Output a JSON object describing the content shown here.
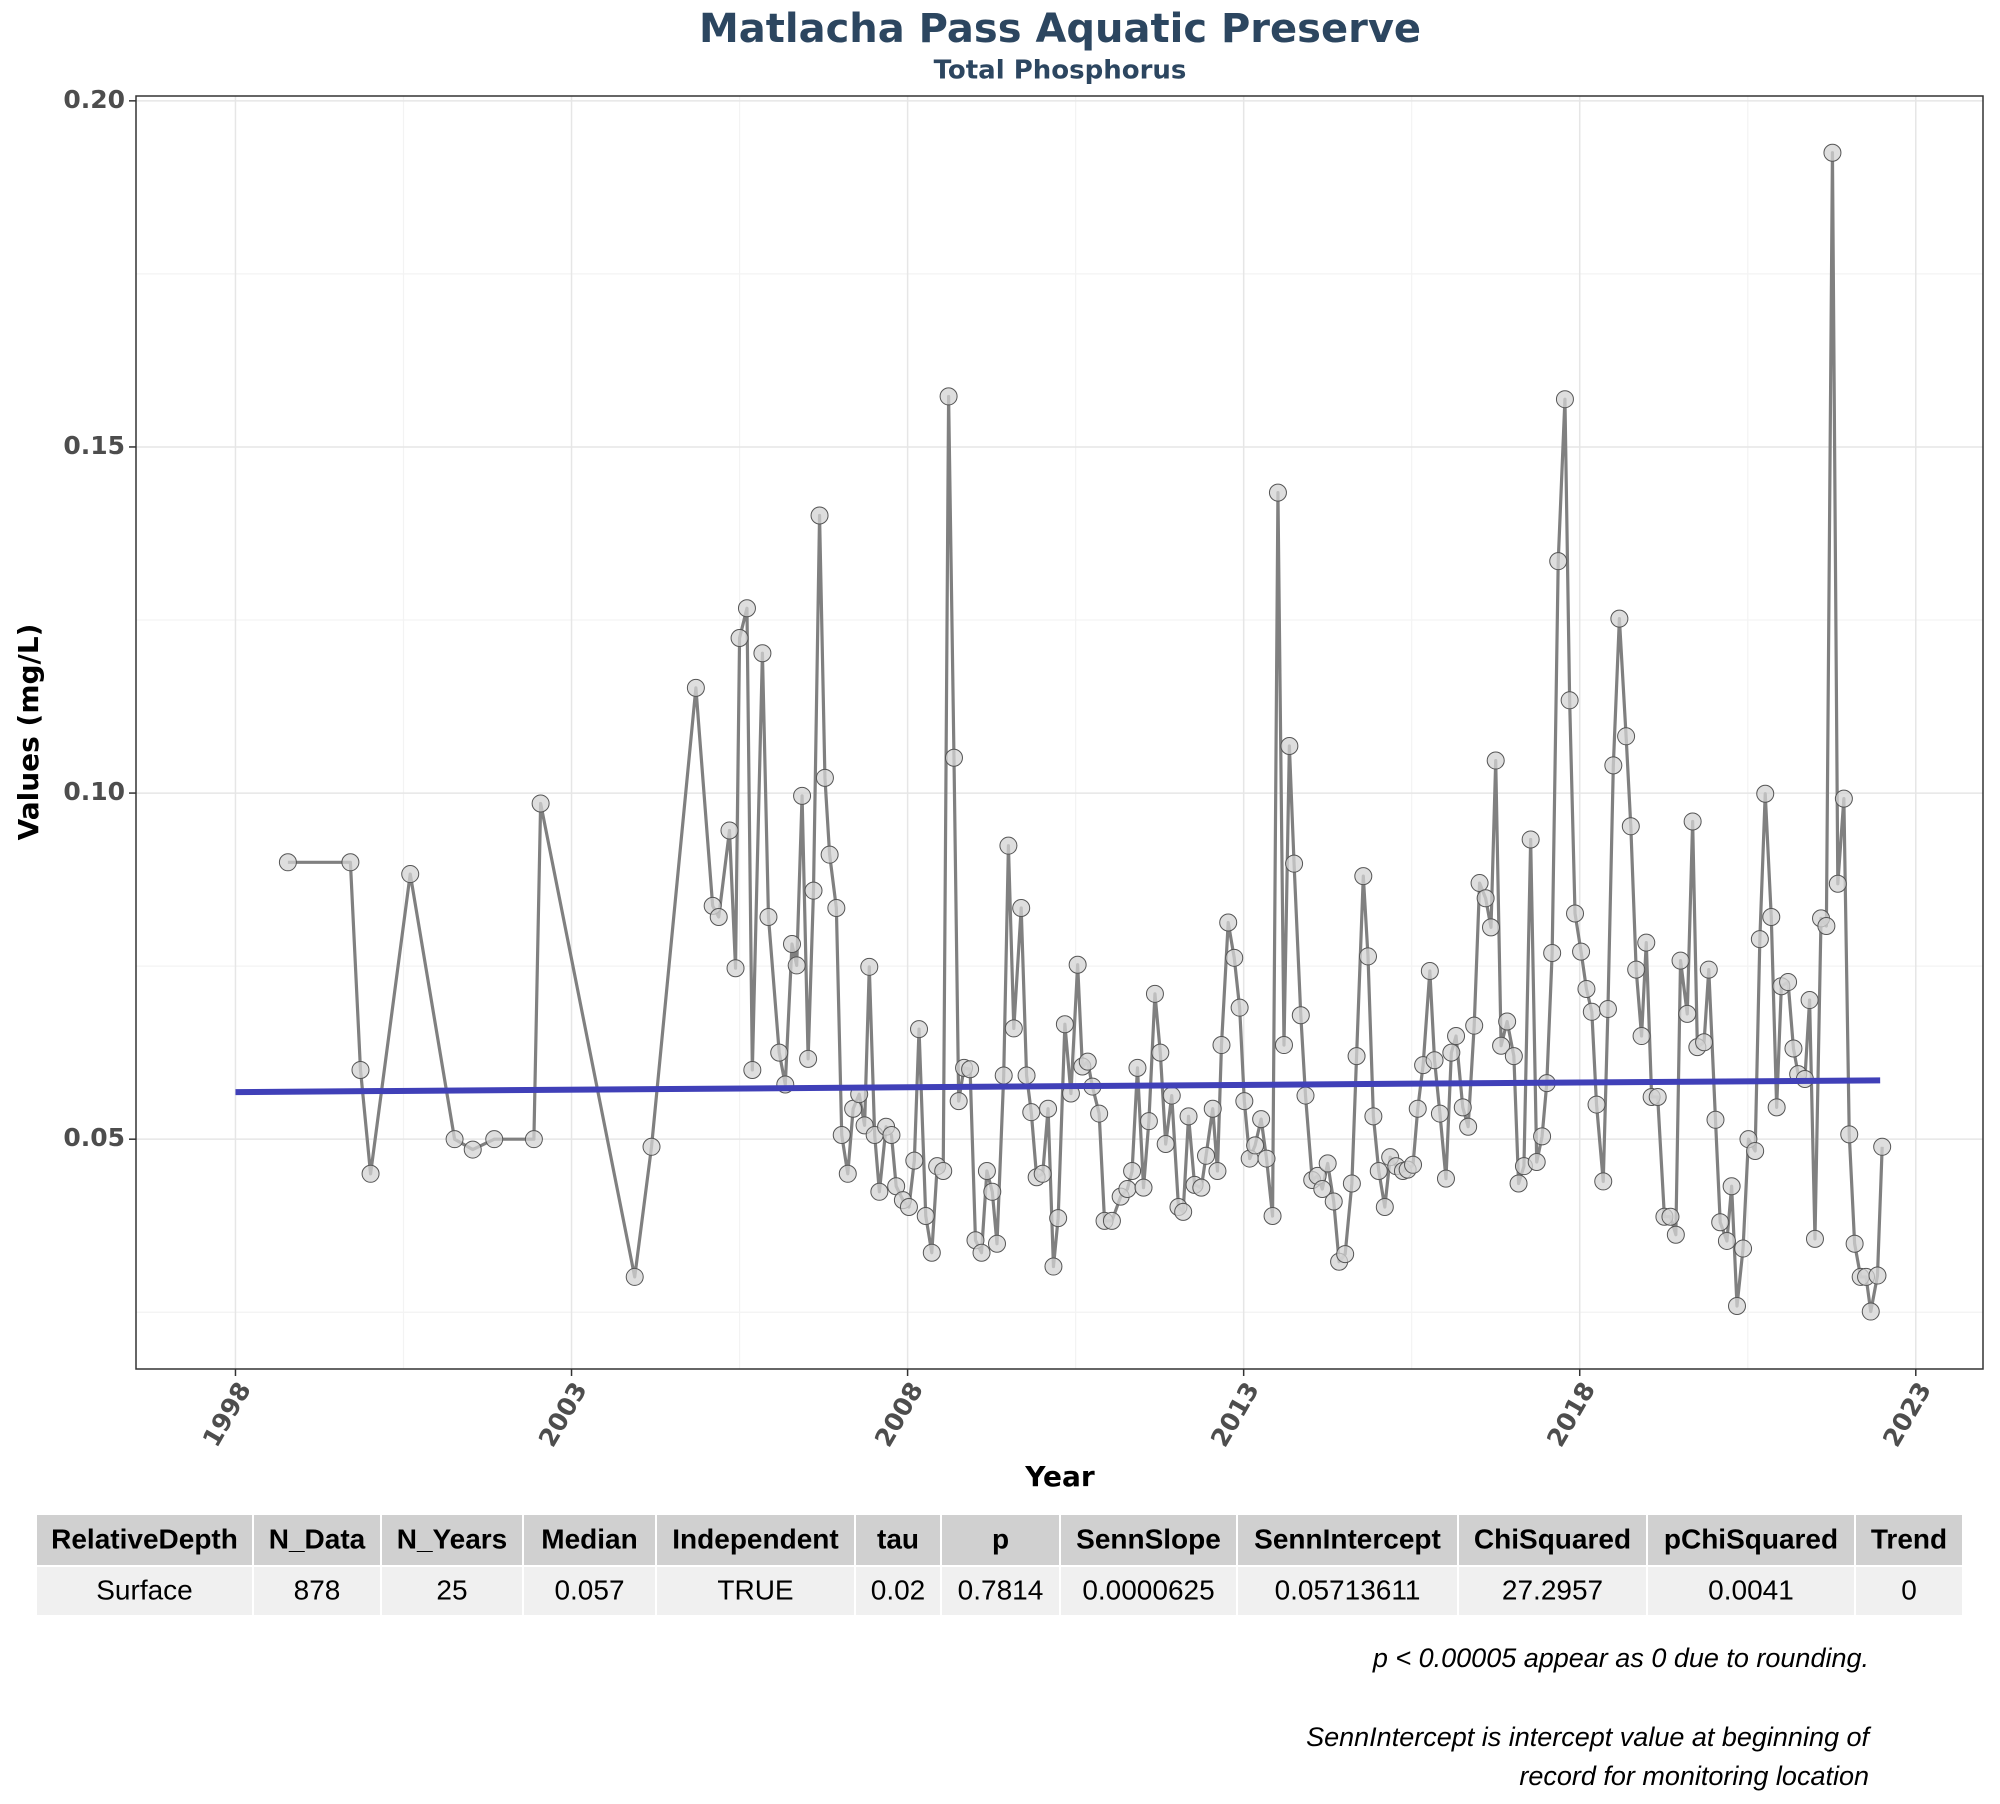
{
  "chart_data": {
    "type": "line",
    "title": "Matlacha Pass Aquatic Preserve",
    "subtitle": "Total Phosphorus",
    "x_label": "Year",
    "y_label": "Values (mg/L)",
    "xlim": [
      1996.52,
      2024.0
    ],
    "ylim": [
      0.0168,
      0.2007
    ],
    "xticks": [
      1998,
      2003,
      2008,
      2013,
      2018,
      2023
    ],
    "yticks": [
      0.05,
      {
        "value": 0.1,
        "label": "0.10"
      },
      0.15,
      {
        "value": 0.2,
        "label": "0.20"
      }
    ],
    "x_minor_ticks": [
      2000.5,
      2005.5,
      2010.5,
      2015.5,
      2020.5
    ],
    "y_minor_ticks": [
      0.025,
      0.075,
      0.125,
      0.175
    ],
    "grid": true,
    "series": [
      {
        "color": "#808080",
        "marker_color": "#d3d3d3",
        "x": [
          1998.78,
          1999.71,
          1999.86,
          2000.01,
          2000.6,
          2001.26,
          2001.53,
          2001.85,
          2002.44,
          2002.54,
          2003.94,
          2004.19,
          2004.85,
          2005.1,
          2005.19,
          2005.35,
          2005.44,
          2005.5,
          2005.61,
          2005.69,
          2005.84,
          2005.93,
          2006.09,
          2006.18,
          2006.28,
          2006.35,
          2006.43,
          2006.52,
          2006.6,
          2006.69,
          2006.77,
          2006.84,
          2006.94,
          2007.02,
          2007.11,
          2007.19,
          2007.28,
          2007.36,
          2007.43,
          2007.51,
          2007.58,
          2007.68,
          2007.76,
          2007.83,
          2007.93,
          2008.02,
          2008.1,
          2008.17,
          2008.27,
          2008.36,
          2008.44,
          2008.53,
          2008.61,
          2008.69,
          2008.76,
          2008.84,
          2008.93,
          2009.01,
          2009.1,
          2009.18,
          2009.26,
          2009.33,
          2009.43,
          2009.5,
          2009.58,
          2009.69,
          2009.77,
          2009.84,
          2009.92,
          2010.01,
          2010.09,
          2010.17,
          2010.24,
          2010.34,
          2010.43,
          2010.53,
          2010.6,
          2010.68,
          2010.75,
          2010.85,
          2010.93,
          2011.04,
          2011.17,
          2011.27,
          2011.34,
          2011.42,
          2011.51,
          2011.59,
          2011.68,
          2011.76,
          2011.84,
          2011.93,
          2012.03,
          2012.1,
          2012.18,
          2012.27,
          2012.37,
          2012.44,
          2012.54,
          2012.61,
          2012.67,
          2012.77,
          2012.86,
          2012.94,
          2013.01,
          2013.09,
          2013.17,
          2013.26,
          2013.34,
          2013.43,
          2013.51,
          2013.6,
          2013.68,
          2013.75,
          2013.85,
          2013.92,
          2014.02,
          2014.1,
          2014.17,
          2014.25,
          2014.34,
          2014.42,
          2014.51,
          2014.61,
          2014.68,
          2014.78,
          2014.85,
          2014.93,
          2015.01,
          2015.1,
          2015.18,
          2015.27,
          2015.37,
          2015.44,
          2015.52,
          2015.59,
          2015.67,
          2015.77,
          2015.84,
          2015.92,
          2016.01,
          2016.09,
          2016.16,
          2016.26,
          2016.34,
          2016.43,
          2016.51,
          2016.6,
          2016.68,
          2016.75,
          2016.83,
          2016.92,
          2017.02,
          2017.09,
          2017.17,
          2017.27,
          2017.36,
          2017.44,
          2017.51,
          2017.59,
          2017.68,
          2017.78,
          2017.85,
          2017.93,
          2018.02,
          2018.1,
          2018.18,
          2018.25,
          2018.35,
          2018.42,
          2018.5,
          2018.59,
          2018.69,
          2018.76,
          2018.84,
          2018.92,
          2018.99,
          2019.07,
          2019.16,
          2019.26,
          2019.35,
          2019.43,
          2019.5,
          2019.6,
          2019.68,
          2019.75,
          2019.85,
          2019.92,
          2020.02,
          2020.09,
          2020.19,
          2020.26,
          2020.34,
          2020.43,
          2020.51,
          2020.61,
          2020.68,
          2020.76,
          2020.85,
          2020.93,
          2021.0,
          2021.1,
          2021.18,
          2021.25,
          2021.35,
          2021.42,
          2021.5,
          2021.59,
          2021.67,
          2021.76,
          2021.84,
          2021.93,
          2022.01,
          2022.09,
          2022.18,
          2022.26,
          2022.33,
          2022.43,
          2022.5
        ],
        "values": [
          0.09,
          0.09,
          0.06,
          0.045,
          0.0883,
          0.05,
          0.0485,
          0.05,
          0.05,
          0.0985,
          0.0301,
          0.0489,
          0.1152,
          0.0837,
          0.0821,
          0.0946,
          0.0747,
          0.1224,
          0.1267,
          0.06,
          0.1202,
          0.0821,
          0.0625,
          0.0579,
          0.0782,
          0.0751,
          0.0996,
          0.0616,
          0.0859,
          0.1401,
          0.1022,
          0.0911,
          0.0834,
          0.0506,
          0.045,
          0.0544,
          0.0565,
          0.052,
          0.0749,
          0.0506,
          0.0424,
          0.0518,
          0.0506,
          0.0432,
          0.0412,
          0.0402,
          0.0469,
          0.0659,
          0.0389,
          0.0336,
          0.0461,
          0.0454,
          0.1573,
          0.1051,
          0.0555,
          0.0603,
          0.0601,
          0.0354,
          0.0336,
          0.0454,
          0.0424,
          0.0349,
          0.0592,
          0.0924,
          0.066,
          0.0834,
          0.0592,
          0.0539,
          0.0445,
          0.045,
          0.0544,
          0.0316,
          0.0386,
          0.0666,
          0.0566,
          0.0752,
          0.0605,
          0.0612,
          0.0576,
          0.0537,
          0.0382,
          0.0382,
          0.0417,
          0.0428,
          0.0454,
          0.0603,
          0.043,
          0.0526,
          0.071,
          0.0625,
          0.0493,
          0.0563,
          0.0402,
          0.0395,
          0.0533,
          0.0434,
          0.043,
          0.0476,
          0.0544,
          0.0454,
          0.0636,
          0.0813,
          0.0762,
          0.069,
          0.0555,
          0.0472,
          0.0491,
          0.0529,
          0.0472,
          0.0389,
          0.1434,
          0.0636,
          0.1068,
          0.0898,
          0.0679,
          0.0563,
          0.0441,
          0.0447,
          0.0428,
          0.0465,
          0.041,
          0.0323,
          0.0334,
          0.0436,
          0.062,
          0.088,
          0.0764,
          0.0533,
          0.0454,
          0.0402,
          0.0474,
          0.0461,
          0.0454,
          0.0456,
          0.0463,
          0.0544,
          0.0607,
          0.0743,
          0.0614,
          0.0537,
          0.0443,
          0.0625,
          0.0649,
          0.0546,
          0.0518,
          0.0664,
          0.087,
          0.0848,
          0.0806,
          0.1047,
          0.0635,
          0.067,
          0.062,
          0.0436,
          0.0461,
          0.0933,
          0.0467,
          0.0504,
          0.0581,
          0.0769,
          0.1335,
          0.1569,
          0.1134,
          0.0826,
          0.0771,
          0.0717,
          0.0684,
          0.055,
          0.0439,
          0.0688,
          0.104,
          0.1252,
          0.1082,
          0.0952,
          0.0745,
          0.0649,
          0.0784,
          0.0561,
          0.0561,
          0.0388,
          0.0388,
          0.0362,
          0.0758,
          0.0681,
          0.0959,
          0.0633,
          0.064,
          0.0745,
          0.0528,
          0.038,
          0.0353,
          0.0432,
          0.0259,
          0.0342,
          0.05,
          0.0483,
          0.0789,
          0.0999,
          0.0821,
          0.0546,
          0.0721,
          0.0727,
          0.0631,
          0.0594,
          0.0587,
          0.0701,
          0.0356,
          0.0819,
          0.0808,
          0.1925,
          0.0869,
          0.0992,
          0.0507,
          0.0349,
          0.0301,
          0.0301,
          0.0251,
          0.0303,
          0.0489
        ]
      }
    ],
    "trend": {
      "color": "#4040b8",
      "x": [
        1998.0,
        2022.47
      ],
      "values": [
        0.0568,
        0.0585
      ]
    }
  },
  "table": {
    "columns": [
      "RelativeDepth",
      "N_Data",
      "N_Years",
      "Median",
      "Independent",
      "tau",
      "p",
      "SennSlope",
      "SennIntercept",
      "ChiSquared",
      "pChiSquared",
      "Trend"
    ],
    "rows": [
      [
        "Surface",
        "878",
        "25",
        "0.057",
        "TRUE",
        "0.02",
        "0.7814",
        "0.0000625",
        "0.05713611",
        "27.2957",
        "0.0041",
        "0"
      ]
    ]
  },
  "notes": [
    "p < 0.00005 appear as 0 due to rounding.",
    "SennIntercept is intercept value at beginning of",
    "record for monitoring location"
  ]
}
